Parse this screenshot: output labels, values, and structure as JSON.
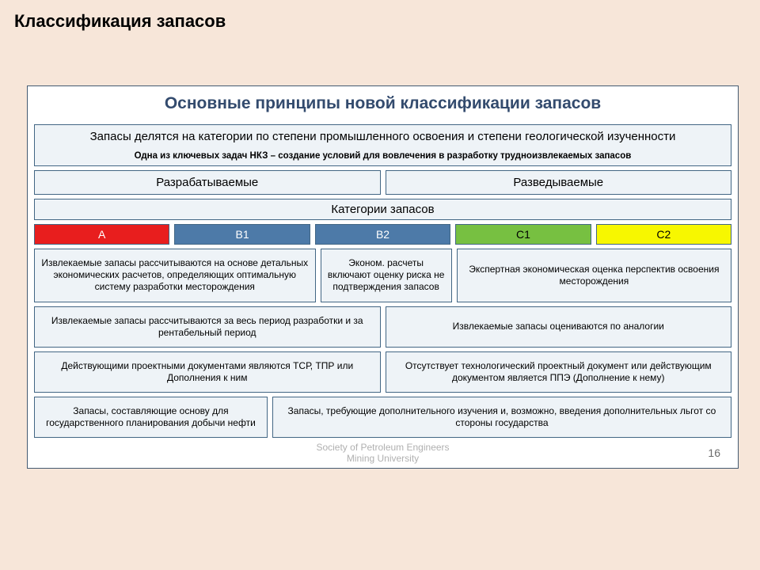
{
  "page": {
    "title": "Классификация запасов",
    "background_color": "#f7e6d9"
  },
  "panel": {
    "main_title": "Основные принципы новой классификации запасов",
    "title_color": "#334b6e",
    "border_color": "#426684",
    "box_bg": "#eef3f7",
    "intro": {
      "main_text": "Запасы делятся на категории по степени промышленного освоения и степени геологической изученности",
      "sub_text": "Одна из ключевых задач НКЗ – создание условий для вовлечения в разработку трудноизвлекаемых запасов"
    },
    "groups": {
      "left": "Разрабатываемые",
      "right": "Разведываемые"
    },
    "categories_header": "Категории запасов",
    "categories": [
      {
        "label": "A",
        "bg": "#e81e1e",
        "fg": "#ffffff"
      },
      {
        "label": "B1",
        "bg": "#4d7aa8",
        "fg": "#ffffff"
      },
      {
        "label": "B2",
        "bg": "#4d7aa8",
        "fg": "#ffffff"
      },
      {
        "label": "C1",
        "bg": "#77c041",
        "fg": "#000000"
      },
      {
        "label": "C2",
        "bg": "#f7f700",
        "fg": "#000000"
      }
    ],
    "desc_row1": {
      "c1": "Извлекаемые запасы рассчитываются на основе детальных экономических расчетов, определяющих оптимальную систему разработки месторождения",
      "c2": "Эконом. расчеты включают оценку риска не подтверждения запасов",
      "c3": "Экспертная экономическая оценка перспектив освоения месторождения"
    },
    "desc_row2": {
      "left": "Извлекаемые запасы рассчитываются за весь период разработки и за рентабельный период",
      "right": "Извлекаемые запасы оцениваются по аналогии"
    },
    "desc_row3": {
      "left": "Действующими проектными документами являются ТСР, ТПР или Дополнения к ним",
      "right": "Отсутствует технологический проектный документ или действующим документом является ППЭ (Дополнение к нему)"
    },
    "desc_row4": {
      "b1": "Запасы, составляющие основу для государственного планирования добычи нефти",
      "b2": "Запасы, требующие дополнительного изучения и, возможно, введения дополнительных льгот со стороны государства"
    }
  },
  "footer": {
    "org_line1": "Society of Petroleum Engineers",
    "org_line2": "Mining University",
    "page_number": "16",
    "color": "#b0b0b0"
  }
}
